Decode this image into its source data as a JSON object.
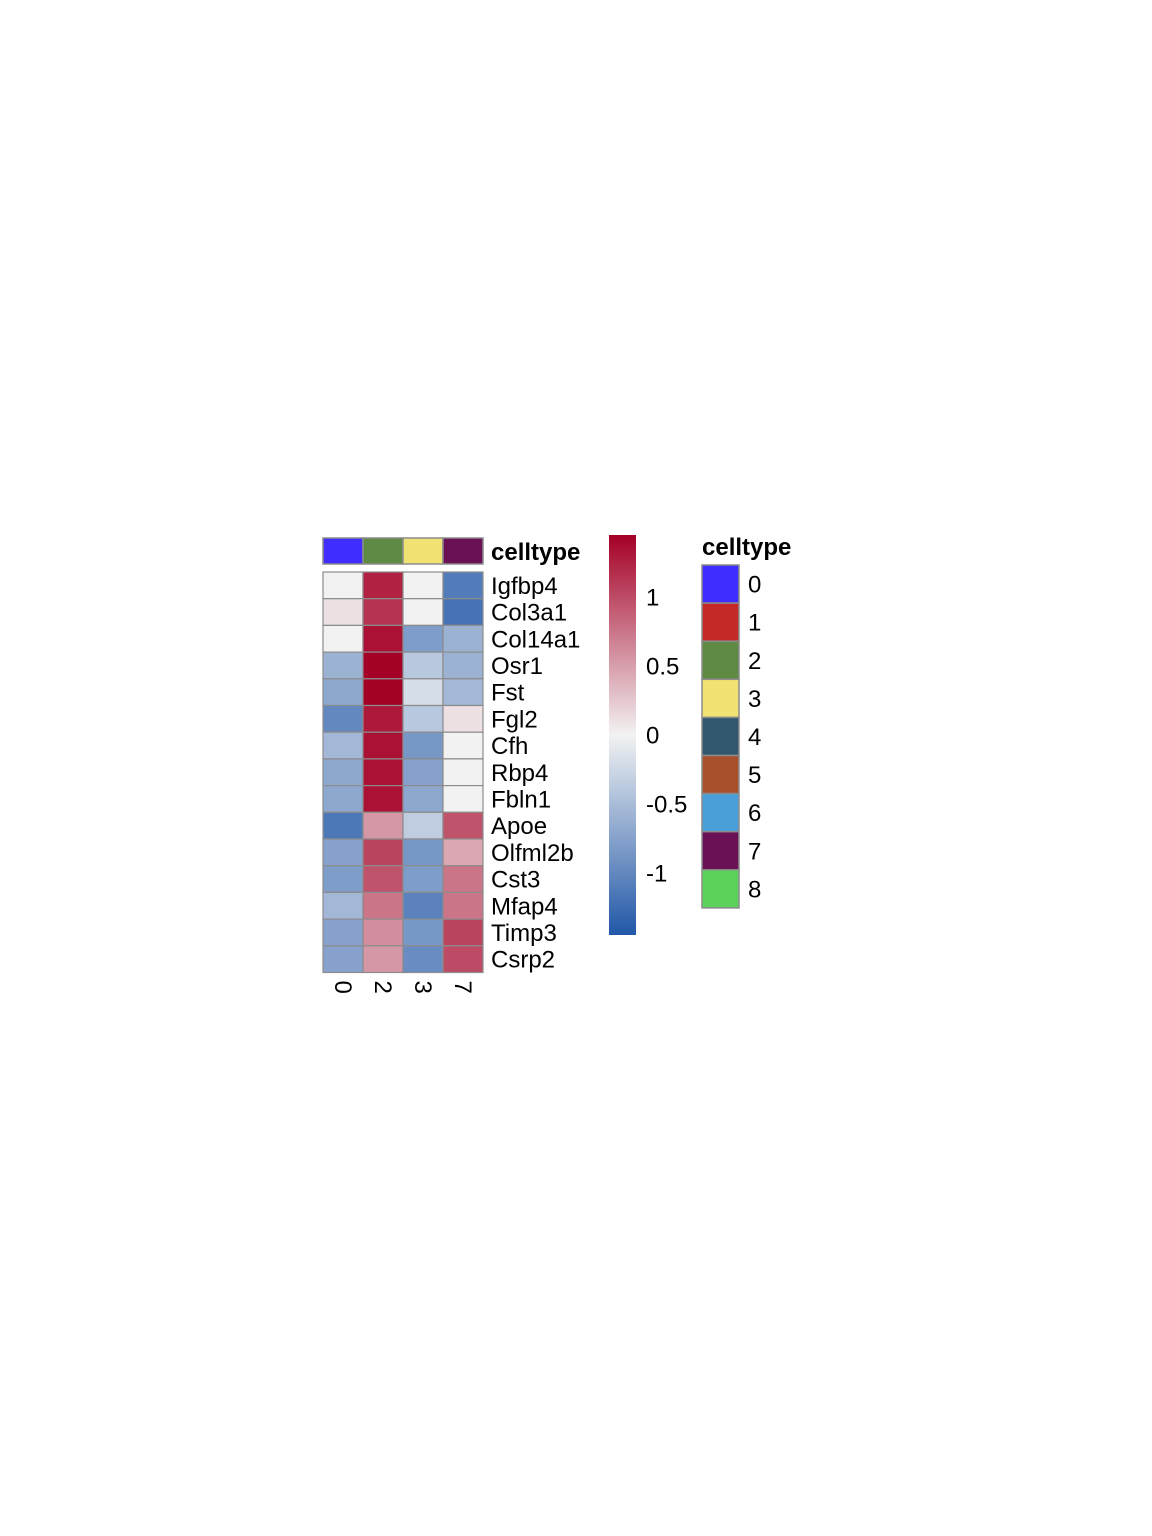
{
  "chart_data": {
    "type": "heatmap",
    "columns": [
      "0",
      "2",
      "3",
      "7"
    ],
    "rows": [
      "Igfbp4",
      "Col3a1",
      "Col14a1",
      "Osr1",
      "Fst",
      "Fgl2",
      "Cfh",
      "Rbp4",
      "Fbln1",
      "Apoe",
      "Olfml2b",
      "Cst3",
      "Mfap4",
      "Timp3",
      "Csrp2"
    ],
    "values": [
      [
        0.0,
        1.25,
        0.0,
        -1.1
      ],
      [
        0.1,
        1.15,
        0.0,
        -1.2
      ],
      [
        0.0,
        1.35,
        -0.8,
        -0.6
      ],
      [
        -0.6,
        1.45,
        -0.4,
        -0.6
      ],
      [
        -0.7,
        1.45,
        -0.2,
        -0.55
      ],
      [
        -1.0,
        1.3,
        -0.4,
        0.1
      ],
      [
        -0.55,
        1.35,
        -0.85,
        0.0
      ],
      [
        -0.7,
        1.35,
        -0.75,
        0.0
      ],
      [
        -0.7,
        1.35,
        -0.7,
        0.0
      ],
      [
        -1.15,
        0.55,
        -0.35,
        0.95
      ],
      [
        -0.75,
        1.05,
        -0.85,
        0.45
      ],
      [
        -0.8,
        0.95,
        -0.8,
        0.75
      ],
      [
        -0.55,
        0.75,
        -1.05,
        0.75
      ],
      [
        -0.75,
        0.6,
        -0.85,
        1.05
      ],
      [
        -0.75,
        0.55,
        -0.95,
        1.0
      ]
    ],
    "annotation": {
      "title": "celltype",
      "column_celltypes": [
        "0",
        "2",
        "3",
        "7"
      ]
    },
    "colorbar": {
      "min": -1.45,
      "max": 1.45,
      "ticks": [
        {
          "value": 1,
          "label": "1"
        },
        {
          "value": 0.5,
          "label": "0.5"
        },
        {
          "value": 0,
          "label": "0"
        },
        {
          "value": -0.5,
          "label": "-0.5"
        },
        {
          "value": -1,
          "label": "-1"
        }
      ],
      "low_color": "#2158a8",
      "mid_color": "#f2f2f2",
      "high_color": "#a50026"
    },
    "legend": {
      "title": "celltype",
      "placement": "right",
      "items": [
        {
          "label": "0",
          "color": "#3f2eff"
        },
        {
          "label": "1",
          "color": "#c62828"
        },
        {
          "label": "2",
          "color": "#5f8a43"
        },
        {
          "label": "3",
          "color": "#f0e374"
        },
        {
          "label": "4",
          "color": "#33566f"
        },
        {
          "label": "5",
          "color": "#a8502c"
        },
        {
          "label": "6",
          "color": "#4a9fd8"
        },
        {
          "label": "7",
          "color": "#6a1054"
        },
        {
          "label": "8",
          "color": "#5bd35a"
        }
      ]
    }
  }
}
